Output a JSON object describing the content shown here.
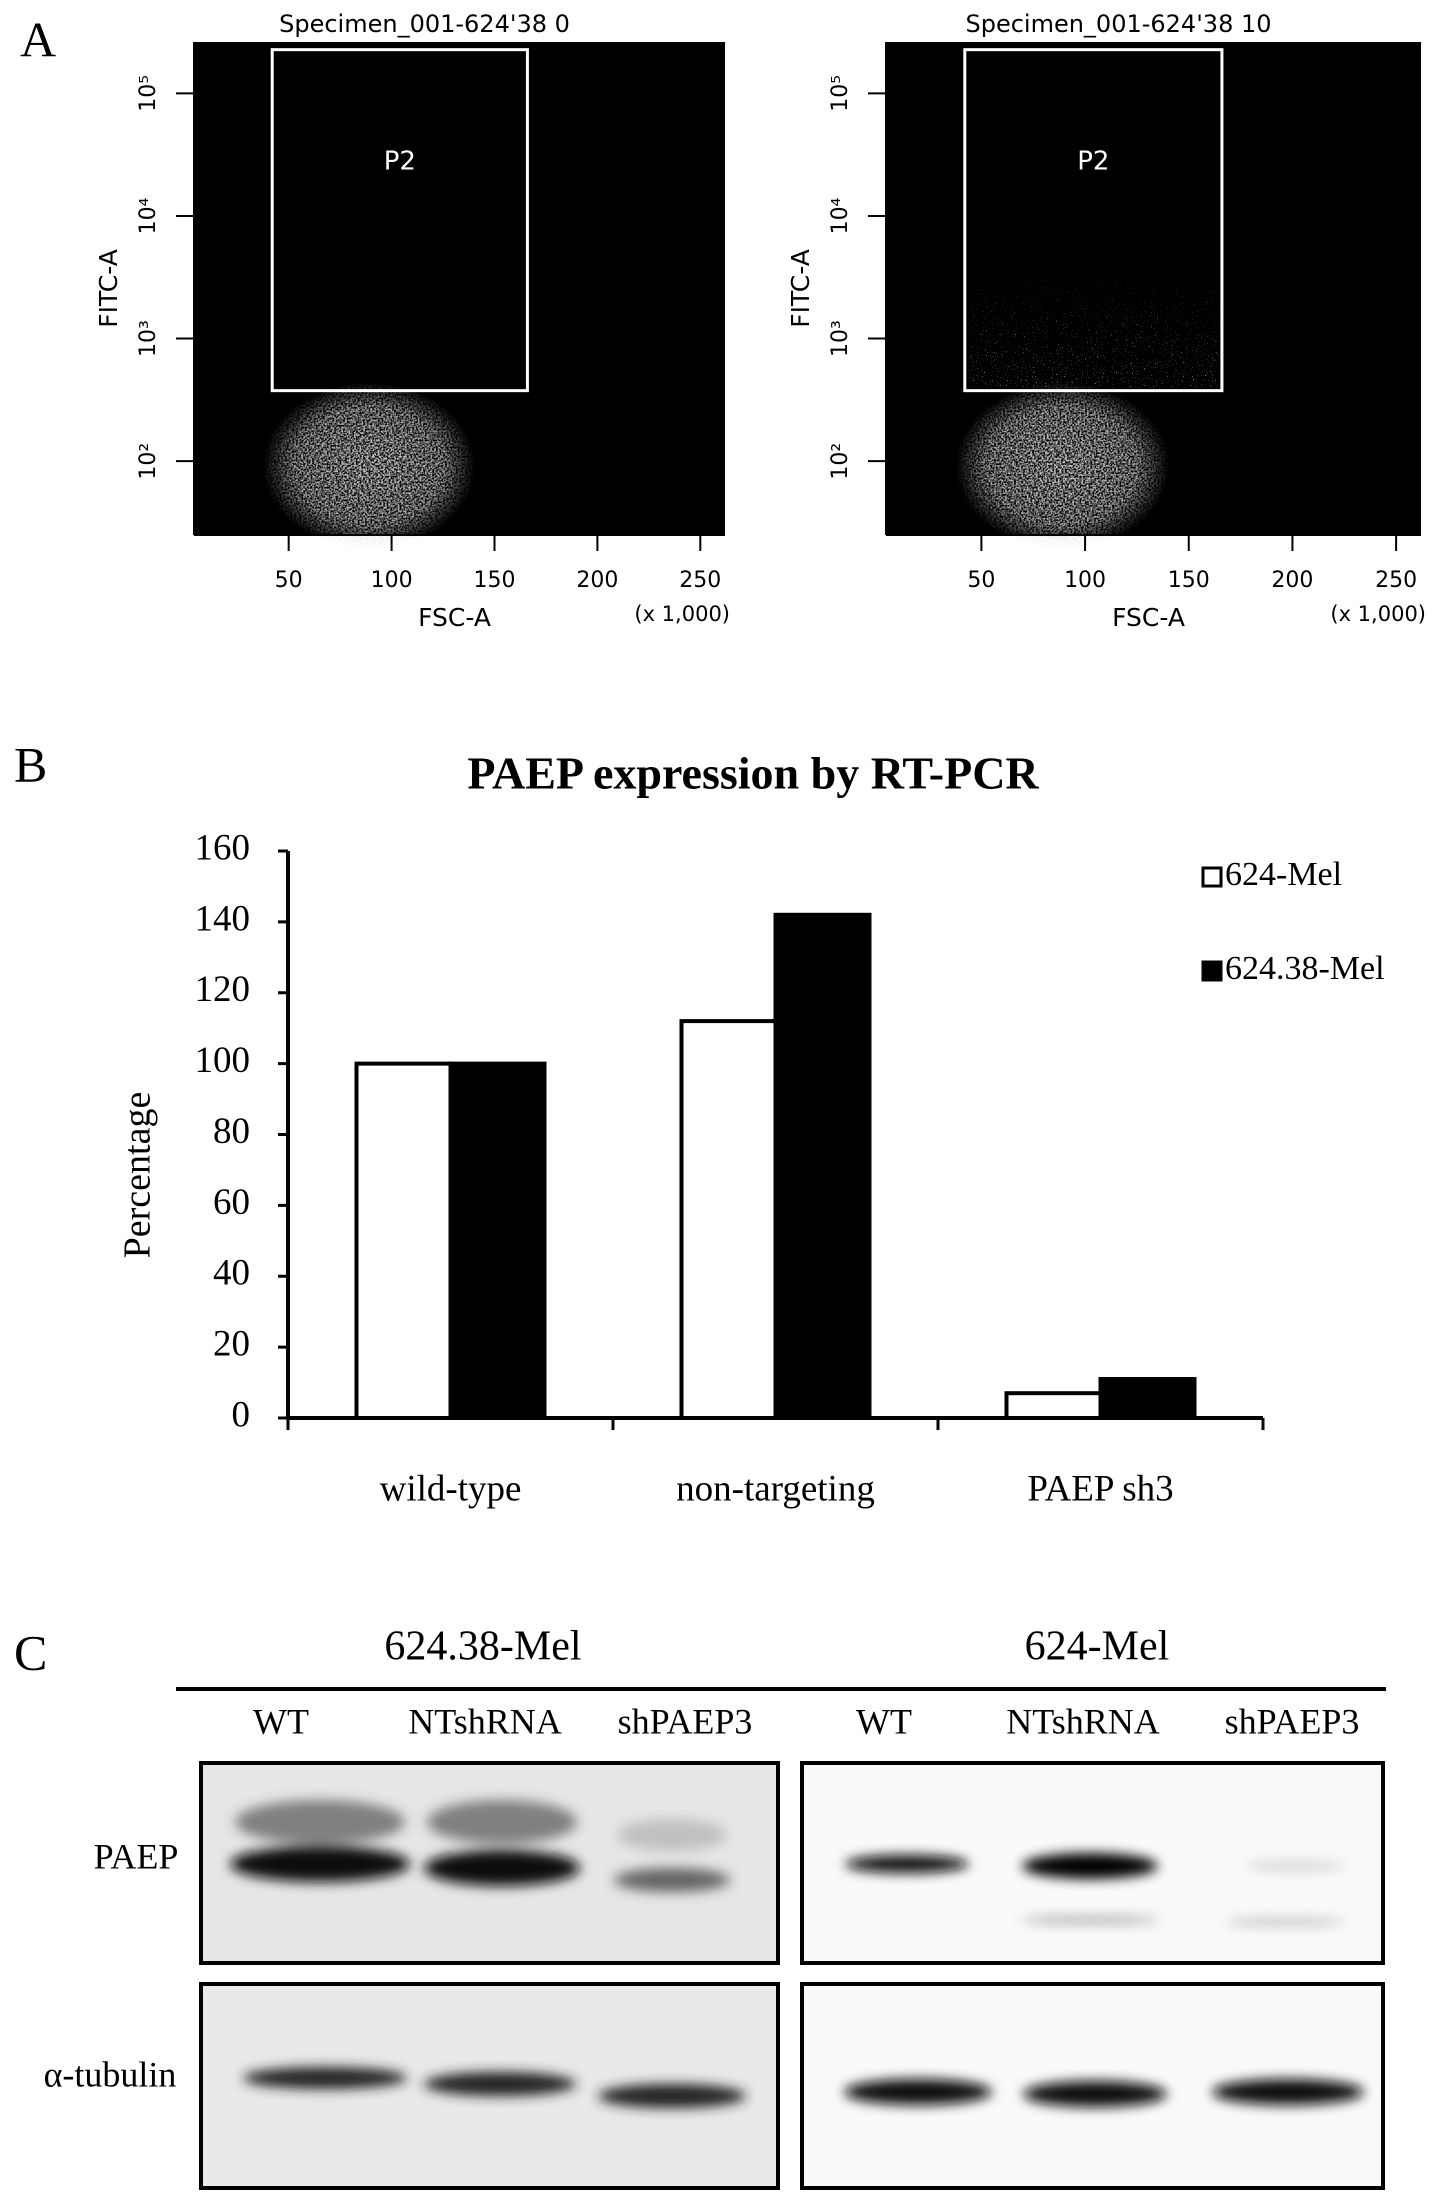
{
  "panel_labels": [
    "A",
    "B",
    "C"
  ],
  "chart_data": [
    {
      "type": "flow",
      "title": "Specimen_001-624'38 0",
      "x_label": "FSC-A",
      "y_label": "FITC-A",
      "x_unit": "(x 1,000)",
      "xlim": [
        4,
        262
      ],
      "xticks": [
        50,
        100,
        150,
        200,
        250
      ],
      "log_y": true,
      "ylim": [
        25,
        262144
      ],
      "yticks": [
        {
          "value": 100,
          "label": "10²"
        },
        {
          "value": 1000,
          "label": "10³"
        },
        {
          "value": 10000,
          "label": "10⁴"
        },
        {
          "value": 100000,
          "label": "10⁵"
        }
      ],
      "gate": {
        "label": "P2",
        "x": [
          42,
          166
        ],
        "y": [
          376,
          227000
        ]
      }
    },
    {
      "type": "flow",
      "title": "Specimen_001-624'38 10",
      "x_label": "FSC-A",
      "y_label": "FITC-A",
      "x_unit": "(x 1,000)",
      "xlim": [
        4,
        262
      ],
      "xticks": [
        50,
        100,
        150,
        200,
        250
      ],
      "log_y": true,
      "ylim": [
        25,
        262144
      ],
      "yticks": [
        {
          "value": 100,
          "label": "10²"
        },
        {
          "value": 1000,
          "label": "10³"
        },
        {
          "value": 10000,
          "label": "10⁴"
        },
        {
          "value": 100000,
          "label": "10⁵"
        }
      ],
      "gate": {
        "label": "P2",
        "x": [
          42,
          166
        ],
        "y": [
          376,
          227000
        ]
      }
    },
    {
      "type": "bar",
      "title": "PAEP expression by RT-PCR",
      "y_label": "Percentage",
      "categories": [
        "wild-type",
        "non-targeting",
        "PAEP sh3"
      ],
      "series": [
        {
          "name": "624-Mel",
          "color": "#ffffff",
          "values": [
            100,
            112,
            7
          ]
        },
        {
          "name": "624.38-Mel",
          "color": "#000000",
          "values": [
            100,
            142,
            11
          ]
        }
      ],
      "ylim": [
        0,
        160
      ],
      "yticks": [
        0,
        20,
        40,
        60,
        80,
        100,
        120,
        140,
        160
      ],
      "grid": false,
      "legend": "upper right"
    }
  ],
  "blot": {
    "groups": [
      {
        "label": "624.38-Mel",
        "lanes": [
          "WT",
          "NTshRNA",
          "shPAEP3"
        ]
      },
      {
        "label": "624-Mel",
        "lanes": [
          "WT",
          "NTshRNA",
          "shPAEP3"
        ]
      }
    ],
    "rows": [
      "PAEP",
      "α-tubulin"
    ]
  }
}
